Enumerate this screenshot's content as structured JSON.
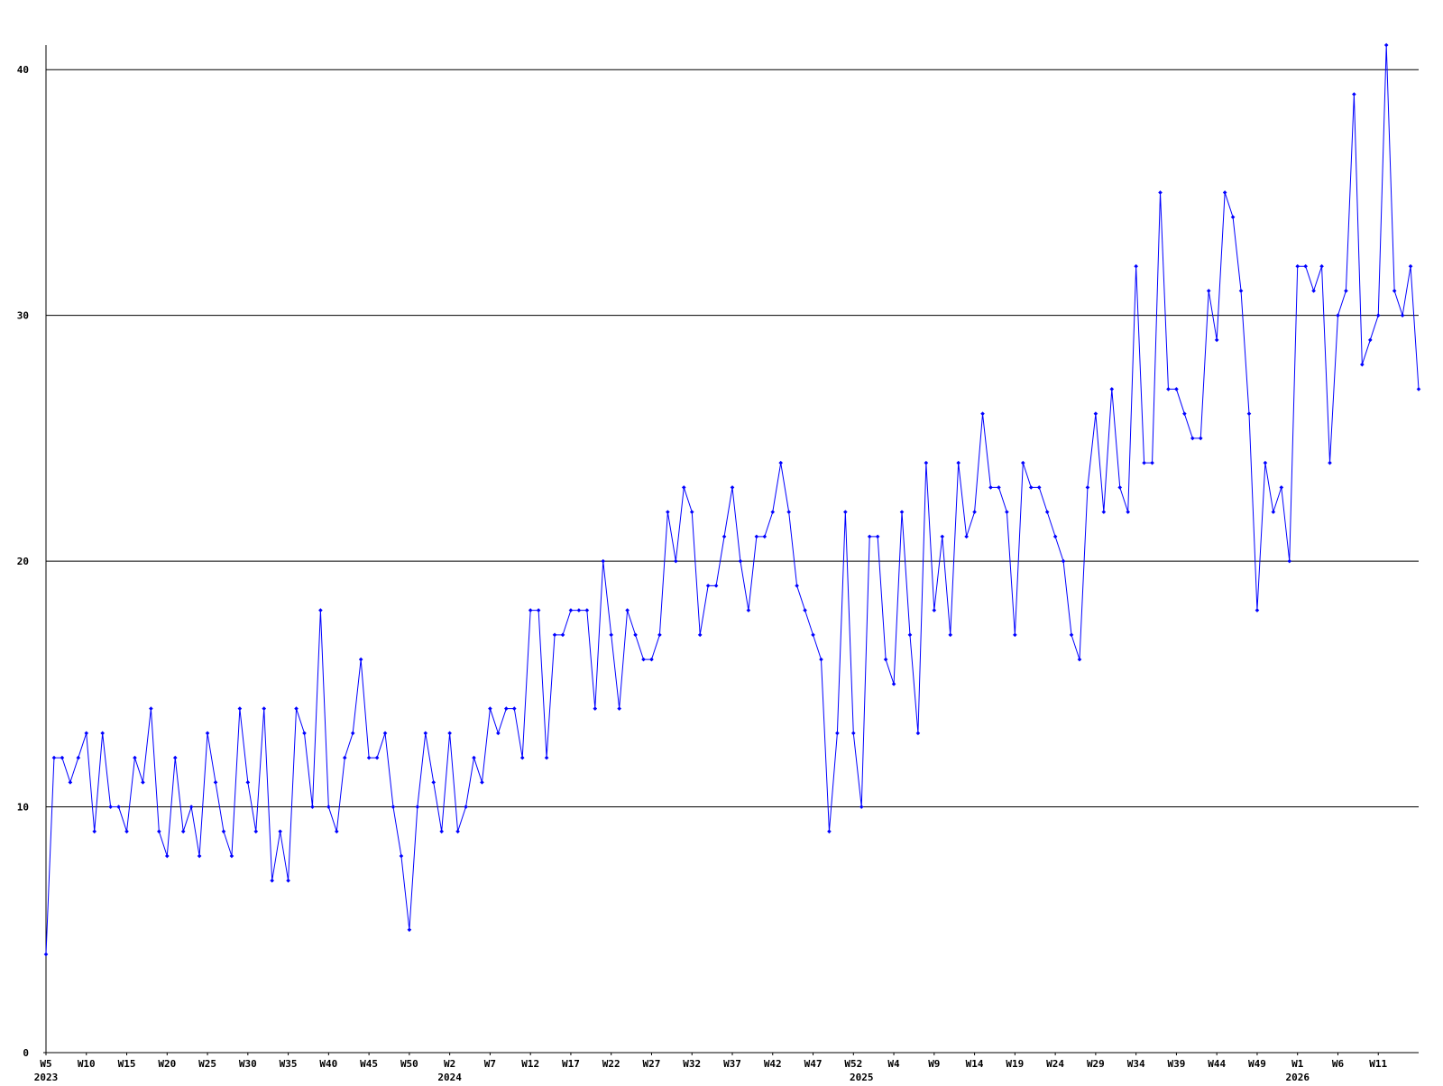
{
  "chart_data": {
    "type": "line",
    "xlim": [
      0,
      170
    ],
    "xticks": [
      {
        "value": 0,
        "label": "W5"
      },
      {
        "value": 5,
        "label": "W10"
      },
      {
        "value": 10,
        "label": "W15"
      },
      {
        "value": 15,
        "label": "W20"
      },
      {
        "value": 20,
        "label": "W25"
      },
      {
        "value": 25,
        "label": "W30"
      },
      {
        "value": 30,
        "label": "W35"
      },
      {
        "value": 35,
        "label": "W40"
      },
      {
        "value": 40,
        "label": "W45"
      },
      {
        "value": 45,
        "label": "W50"
      },
      {
        "value": 50,
        "label": "W2"
      },
      {
        "value": 55,
        "label": "W7"
      },
      {
        "value": 60,
        "label": "W12"
      },
      {
        "value": 65,
        "label": "W17"
      },
      {
        "value": 70,
        "label": "W22"
      },
      {
        "value": 75,
        "label": "W27"
      },
      {
        "value": 80,
        "label": "W32"
      },
      {
        "value": 85,
        "label": "W37"
      },
      {
        "value": 90,
        "label": "W42"
      },
      {
        "value": 95,
        "label": "W47"
      },
      {
        "value": 100,
        "label": "W52"
      },
      {
        "value": 105,
        "label": "W4"
      },
      {
        "value": 110,
        "label": "W9"
      },
      {
        "value": 115,
        "label": "W14"
      },
      {
        "value": 120,
        "label": "W19"
      },
      {
        "value": 125,
        "label": "W24"
      },
      {
        "value": 130,
        "label": "W29"
      },
      {
        "value": 135,
        "label": "W34"
      },
      {
        "value": 140,
        "label": "W39"
      },
      {
        "value": 145,
        "label": "W44"
      },
      {
        "value": 150,
        "label": "W49"
      },
      {
        "value": 155,
        "label": "W1"
      },
      {
        "value": 160,
        "label": "W6"
      },
      {
        "value": 165,
        "label": "W11"
      }
    ],
    "year_ticks": [
      {
        "value": 0,
        "label": "2023"
      },
      {
        "value": 50,
        "label": "2024"
      },
      {
        "value": 101,
        "label": "2025"
      },
      {
        "value": 155,
        "label": "2026"
      }
    ],
    "ylim": [
      0,
      41
    ],
    "yticks": [
      0,
      10,
      20,
      30,
      40
    ],
    "grid": true,
    "series": [
      {
        "color": "#0000ff",
        "values": [
          4,
          12,
          12,
          11,
          12,
          13,
          9,
          13,
          10,
          10,
          9,
          12,
          11,
          14,
          9,
          8,
          12,
          9,
          10,
          8,
          13,
          11,
          9,
          8,
          14,
          11,
          9,
          14,
          7,
          9,
          7,
          14,
          13,
          10,
          18,
          10,
          9,
          12,
          13,
          16,
          12,
          12,
          13,
          10,
          8,
          5,
          10,
          13,
          11,
          9,
          13,
          9,
          10,
          12,
          11,
          14,
          13,
          14,
          14,
          12,
          18,
          18,
          12,
          17,
          17,
          18,
          18,
          18,
          14,
          20,
          17,
          14,
          18,
          17,
          16,
          16,
          17,
          22,
          20,
          23,
          22,
          17,
          19,
          19,
          21,
          23,
          20,
          18,
          21,
          21,
          22,
          24,
          22,
          19,
          18,
          17,
          16,
          9,
          13,
          22,
          13,
          10,
          21,
          21,
          16,
          15,
          22,
          17,
          13,
          24,
          18,
          21,
          17,
          24,
          21,
          22,
          26,
          23,
          23,
          22,
          17,
          24,
          23,
          23,
          22,
          21,
          20,
          17,
          16,
          23,
          26,
          22,
          27,
          23,
          22,
          32,
          24,
          24,
          35,
          27,
          27,
          26,
          25,
          25,
          31,
          29,
          35,
          34,
          31,
          26,
          18,
          24,
          22,
          23,
          20,
          32,
          32,
          31,
          32,
          24,
          30,
          31,
          39,
          28,
          29,
          30,
          41,
          31,
          30,
          32,
          27
        ]
      }
    ]
  }
}
